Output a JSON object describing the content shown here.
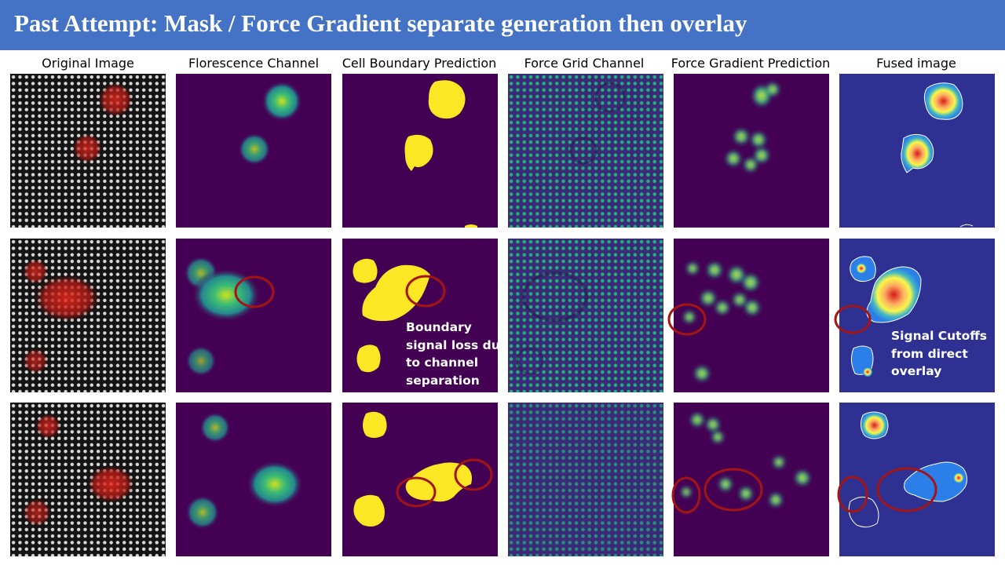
{
  "slide": {
    "title": "Past Attempt: Mask / Force Gradient separate generation then overlay"
  },
  "columns": [
    "Original Image",
    "Florescence Channel",
    "Cell Boundary Prediction",
    "Force Grid Channel",
    "Force Gradient Prediction",
    "Fused image"
  ],
  "annotations": {
    "boundary_note": [
      "Boundary",
      "signal loss due",
      "to channel",
      "separation"
    ],
    "cutoff_note": [
      "Signal Cutoffs",
      "from direct",
      "overlay"
    ]
  },
  "colors": {
    "title_bar": "#4472c4",
    "viridis_bg": "#440154",
    "mask_yellow": "#fde725",
    "fused_bg": "#2e3192",
    "highlight_circle": "#a31515"
  }
}
